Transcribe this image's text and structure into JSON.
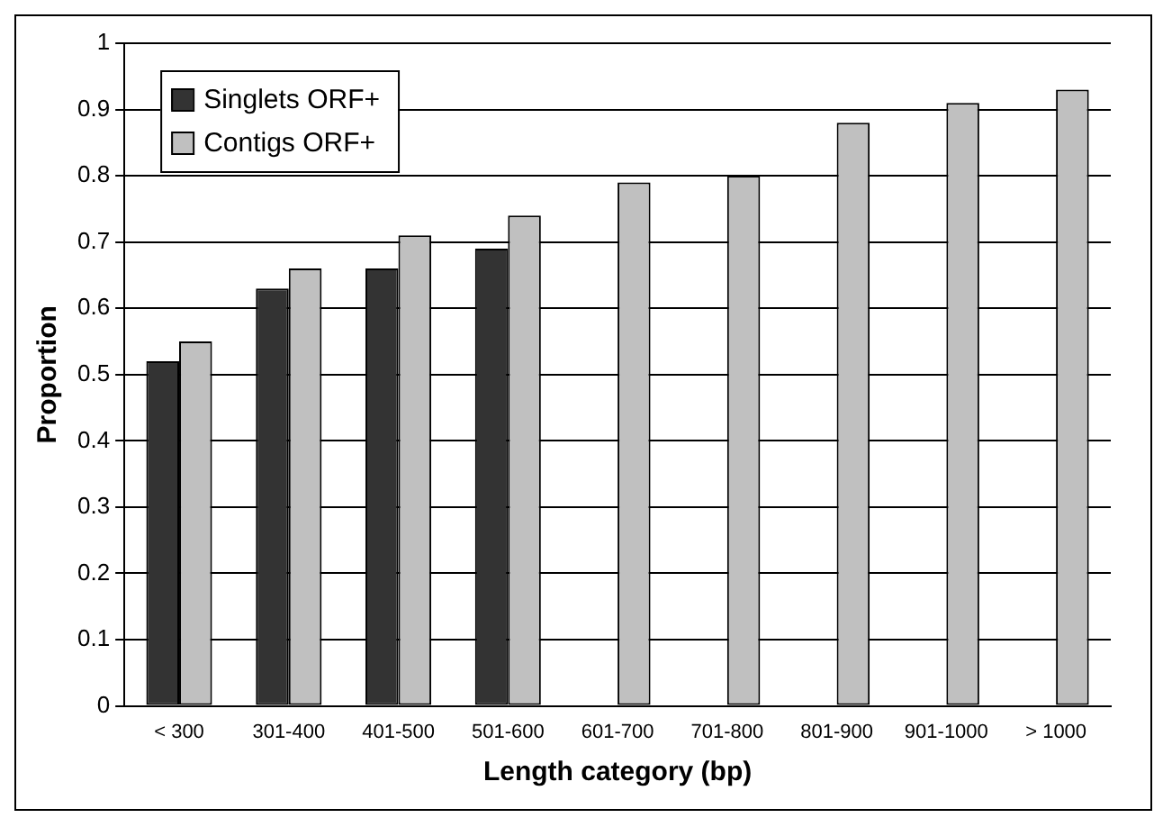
{
  "chart_data": {
    "type": "bar",
    "xlabel": "Length category (bp)",
    "ylabel": "Proportion",
    "categories": [
      "< 300",
      "301-400",
      "401-500",
      "501-600",
      "601-700",
      "701-800",
      "801-900",
      "901-1000",
      "> 1000"
    ],
    "series": [
      {
        "name": "Singlets ORF+",
        "color": "#333333",
        "values": [
          0.52,
          0.63,
          0.66,
          0.69,
          null,
          null,
          null,
          null,
          null
        ]
      },
      {
        "name": "Contigs ORF+",
        "color": "#c0c0c0",
        "values": [
          0.55,
          0.66,
          0.71,
          0.74,
          0.79,
          0.8,
          0.88,
          0.91,
          0.93
        ]
      }
    ],
    "ylim": [
      0,
      1
    ],
    "yticks": [
      0,
      0.1,
      0.2,
      0.3,
      0.4,
      0.5,
      0.6,
      0.7,
      0.8,
      0.9,
      1
    ],
    "grid": "y",
    "legend": "top left"
  }
}
